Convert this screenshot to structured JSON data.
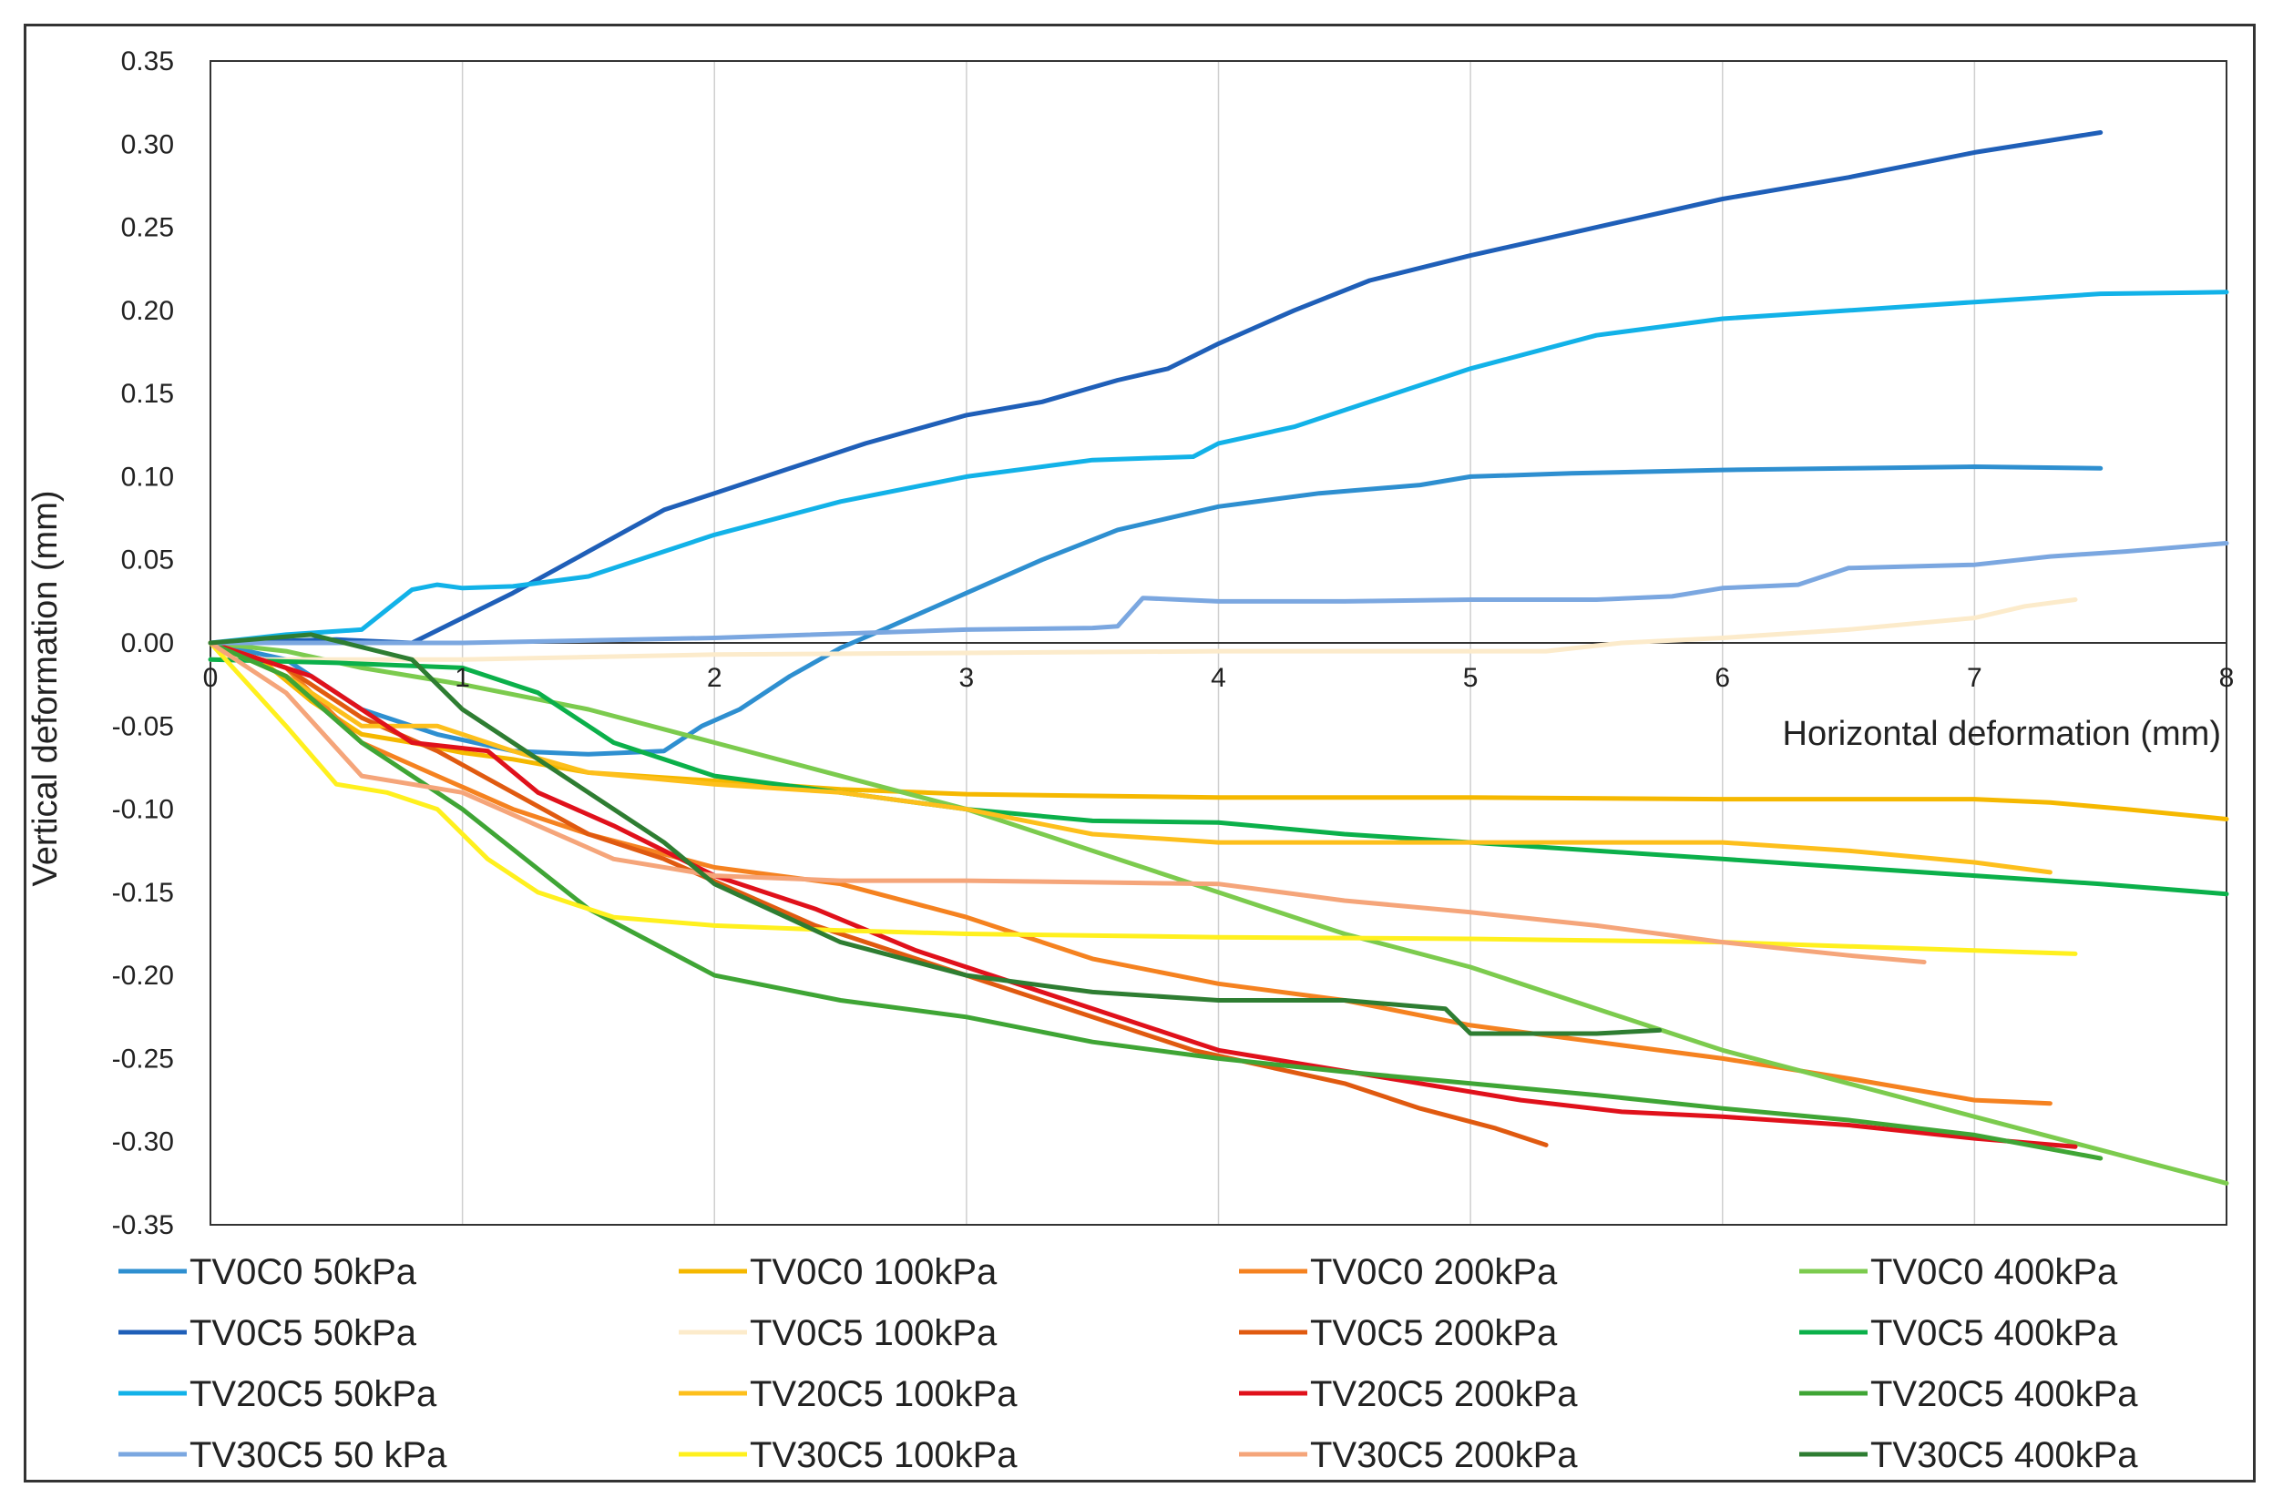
{
  "chart_data": {
    "type": "line",
    "title": "",
    "xlabel": "Horizontal deformation (mm)",
    "ylabel": "Vertical deformation (mm)",
    "xlim": [
      0,
      8
    ],
    "ylim": [
      -0.35,
      0.35
    ],
    "xticks": [
      "0",
      "1",
      "2",
      "3",
      "4",
      "5",
      "6",
      "7",
      "8"
    ],
    "yticks": [
      "0.35",
      "0.30",
      "0.25",
      "0.20",
      "0.15",
      "0.10",
      "0.05",
      "0.00",
      "-0.05",
      "-0.10",
      "-0.15",
      "-0.20",
      "-0.25",
      "-0.30",
      "-0.35"
    ],
    "grid": "vertical",
    "legend": "bottom",
    "series": [
      {
        "name": "TV0C0 50kPa",
        "color": "#2E8FD0",
        "x": [
          0,
          0.3,
          0.6,
          0.9,
          1.2,
          1.5,
          1.8,
          1.95,
          2.1,
          2.3,
          2.5,
          2.7,
          3.0,
          3.3,
          3.6,
          4.0,
          4.4,
          4.8,
          5.0,
          5.4,
          6.0,
          6.5,
          7.0,
          7.5
        ],
        "y": [
          0,
          -0.01,
          -0.04,
          -0.055,
          -0.065,
          -0.067,
          -0.065,
          -0.05,
          -0.04,
          -0.02,
          -0.003,
          0.01,
          0.03,
          0.05,
          0.068,
          0.082,
          0.09,
          0.095,
          0.1,
          0.102,
          0.104,
          0.105,
          0.106,
          0.105
        ]
      },
      {
        "name": "TV0C0 100kPa",
        "color": "#F5B800",
        "x": [
          0,
          0.2,
          0.4,
          0.6,
          0.8,
          1.0,
          1.2,
          1.5,
          2.0,
          2.5,
          3.0,
          4.0,
          5.0,
          6.0,
          7.0,
          7.3,
          7.6,
          8.0
        ],
        "y": [
          0,
          -0.01,
          -0.035,
          -0.055,
          -0.06,
          -0.066,
          -0.07,
          -0.078,
          -0.083,
          -0.088,
          -0.091,
          -0.093,
          -0.093,
          -0.094,
          -0.094,
          -0.096,
          -0.1,
          -0.106
        ]
      },
      {
        "name": "TV0C0 200kPa",
        "color": "#F58220",
        "x": [
          0,
          0.3,
          0.6,
          0.9,
          1.2,
          1.5,
          2.0,
          2.5,
          3.0,
          3.5,
          4.0,
          4.5,
          5.0,
          5.5,
          6.0,
          6.5,
          7.0,
          7.3
        ],
        "y": [
          0,
          -0.015,
          -0.06,
          -0.08,
          -0.1,
          -0.115,
          -0.135,
          -0.145,
          -0.165,
          -0.19,
          -0.205,
          -0.215,
          -0.23,
          -0.24,
          -0.25,
          -0.262,
          -0.275,
          -0.277
        ]
      },
      {
        "name": "TV0C0 400kPa",
        "color": "#7CCB4E",
        "x": [
          0,
          0.3,
          0.6,
          1.0,
          1.5,
          2.0,
          2.5,
          3.0,
          3.5,
          4.0,
          4.5,
          5.0,
          5.5,
          6.0,
          6.5,
          7.0,
          7.5,
          8.0
        ],
        "y": [
          0,
          -0.005,
          -0.015,
          -0.025,
          -0.04,
          -0.06,
          -0.08,
          -0.1,
          -0.125,
          -0.15,
          -0.175,
          -0.195,
          -0.22,
          -0.245,
          -0.265,
          -0.285,
          -0.305,
          -0.325
        ]
      },
      {
        "name": "TV0C5 50kPa",
        "color": "#1F5FB8",
        "x": [
          0,
          0.5,
          0.8,
          1.0,
          1.2,
          1.5,
          1.8,
          2.0,
          2.3,
          2.6,
          3.0,
          3.3,
          3.6,
          3.8,
          4.0,
          4.3,
          4.6,
          5.0,
          5.5,
          6.0,
          6.5,
          7.0,
          7.5
        ],
        "y": [
          0,
          0.002,
          0,
          0.015,
          0.03,
          0.055,
          0.08,
          0.09,
          0.105,
          0.12,
          0.137,
          0.145,
          0.158,
          0.165,
          0.18,
          0.2,
          0.218,
          0.233,
          0.25,
          0.267,
          0.28,
          0.295,
          0.307
        ]
      },
      {
        "name": "TV0C5 100kPa",
        "color": "#FCEBCB",
        "x": [
          0,
          1.0,
          2.0,
          3.0,
          4.0,
          5.0,
          5.3,
          5.6,
          6.0,
          6.5,
          7.0,
          7.2,
          7.4
        ],
        "y": [
          -0.01,
          -0.01,
          -0.007,
          -0.006,
          -0.005,
          -0.005,
          -0.005,
          0,
          0.003,
          0.008,
          0.015,
          0.022,
          0.026
        ]
      },
      {
        "name": "TV0C5 200kPa",
        "color": "#E05A10",
        "x": [
          0,
          0.3,
          0.6,
          0.9,
          1.2,
          1.5,
          1.8,
          2.1,
          2.4,
          2.7,
          3.0,
          3.3,
          3.6,
          3.9,
          4.2,
          4.5,
          4.8,
          5.1,
          5.3
        ],
        "y": [
          0,
          -0.015,
          -0.045,
          -0.065,
          -0.09,
          -0.115,
          -0.13,
          -0.15,
          -0.17,
          -0.185,
          -0.2,
          -0.215,
          -0.23,
          -0.245,
          -0.255,
          -0.265,
          -0.28,
          -0.292,
          -0.302
        ]
      },
      {
        "name": "TV0C5 400kPa",
        "color": "#0BB04A",
        "x": [
          0,
          0.5,
          1.0,
          1.3,
          1.6,
          2.0,
          2.5,
          3.0,
          3.5,
          4.0,
          4.5,
          5.0,
          5.5,
          6.0,
          6.5,
          7.0,
          7.5,
          8.0
        ],
        "y": [
          -0.01,
          -0.012,
          -0.015,
          -0.03,
          -0.06,
          -0.08,
          -0.09,
          -0.1,
          -0.107,
          -0.108,
          -0.115,
          -0.12,
          -0.125,
          -0.13,
          -0.135,
          -0.14,
          -0.145,
          -0.151
        ]
      },
      {
        "name": "TV20C5 50kPa",
        "color": "#12B2E8",
        "x": [
          0,
          0.3,
          0.6,
          0.7,
          0.8,
          0.9,
          1.0,
          1.2,
          1.5,
          1.8,
          2.0,
          2.5,
          3.0,
          3.5,
          3.9,
          4.0,
          4.3,
          4.6,
          5.0,
          5.5,
          6.0,
          6.5,
          7.0,
          7.5,
          8.0
        ],
        "y": [
          0,
          0.005,
          0.008,
          0.02,
          0.032,
          0.035,
          0.033,
          0.034,
          0.04,
          0.055,
          0.065,
          0.085,
          0.1,
          0.11,
          0.112,
          0.12,
          0.13,
          0.145,
          0.165,
          0.185,
          0.195,
          0.2,
          0.205,
          0.21,
          0.211
        ]
      },
      {
        "name": "TV20C5 100kPa",
        "color": "#FDBF1C",
        "x": [
          0,
          0.3,
          0.6,
          0.9,
          1.2,
          1.5,
          2.0,
          2.5,
          3.0,
          3.5,
          4.0,
          4.5,
          5.0,
          5.5,
          6.0,
          6.5,
          7.0,
          7.3
        ],
        "y": [
          0,
          -0.02,
          -0.05,
          -0.05,
          -0.065,
          -0.078,
          -0.085,
          -0.09,
          -0.1,
          -0.115,
          -0.12,
          -0.12,
          -0.12,
          -0.12,
          -0.12,
          -0.125,
          -0.132,
          -0.138
        ]
      },
      {
        "name": "TV20C5 200kPa",
        "color": "#E0111B",
        "x": [
          0,
          0.4,
          0.8,
          1.1,
          1.3,
          1.6,
          2.0,
          2.4,
          2.8,
          3.2,
          3.6,
          4.0,
          4.4,
          4.8,
          5.2,
          5.6,
          6.0,
          6.5,
          7.0,
          7.4
        ],
        "y": [
          0,
          -0.02,
          -0.06,
          -0.065,
          -0.09,
          -0.11,
          -0.14,
          -0.16,
          -0.185,
          -0.205,
          -0.225,
          -0.245,
          -0.255,
          -0.265,
          -0.275,
          -0.282,
          -0.285,
          -0.29,
          -0.298,
          -0.303
        ]
      },
      {
        "name": "TV20C5 400kPa",
        "color": "#3FA535",
        "x": [
          0,
          0.3,
          0.6,
          1.0,
          1.5,
          2.0,
          2.5,
          3.0,
          3.5,
          4.0,
          4.5,
          5.0,
          5.5,
          6.0,
          6.5,
          7.0,
          7.5
        ],
        "y": [
          0,
          -0.02,
          -0.06,
          -0.1,
          -0.16,
          -0.2,
          -0.215,
          -0.225,
          -0.24,
          -0.25,
          -0.258,
          -0.265,
          -0.272,
          -0.28,
          -0.287,
          -0.296,
          -0.31
        ]
      },
      {
        "name": "TV30C5 50 kPa",
        "color": "#7BA7E0",
        "x": [
          0,
          1.0,
          2.0,
          3.0,
          3.5,
          3.6,
          3.7,
          4.0,
          4.5,
          5.0,
          5.5,
          5.8,
          6.0,
          6.3,
          6.5,
          7.0,
          7.3,
          7.6,
          8.0
        ],
        "y": [
          0,
          0,
          0.003,
          0.008,
          0.009,
          0.01,
          0.027,
          0.025,
          0.025,
          0.026,
          0.026,
          0.028,
          0.033,
          0.035,
          0.045,
          0.047,
          0.052,
          0.055,
          0.06
        ]
      },
      {
        "name": "TV30C5 100kPa",
        "color": "#FFF01E",
        "x": [
          0,
          0.3,
          0.5,
          0.7,
          0.9,
          1.1,
          1.3,
          1.6,
          2.0,
          2.5,
          3.0,
          4.0,
          5.0,
          6.0,
          7.0,
          7.4
        ],
        "y": [
          0,
          -0.05,
          -0.085,
          -0.09,
          -0.1,
          -0.13,
          -0.15,
          -0.165,
          -0.17,
          -0.173,
          -0.175,
          -0.177,
          -0.178,
          -0.18,
          -0.185,
          -0.187
        ]
      },
      {
        "name": "TV30C5 200kPa",
        "color": "#F5A57A",
        "x": [
          0,
          0.3,
          0.6,
          1.0,
          1.3,
          1.6,
          2.0,
          2.5,
          3.0,
          3.5,
          4.0,
          4.5,
          5.0,
          5.5,
          6.0,
          6.5,
          6.8
        ],
        "y": [
          0,
          -0.03,
          -0.08,
          -0.09,
          -0.11,
          -0.13,
          -0.14,
          -0.143,
          -0.143,
          -0.144,
          -0.145,
          -0.155,
          -0.162,
          -0.17,
          -0.18,
          -0.188,
          -0.192
        ]
      },
      {
        "name": "TV30C5 400kPa",
        "color": "#2E7D32",
        "x": [
          0,
          0.4,
          0.8,
          1.0,
          1.2,
          1.5,
          1.8,
          2.0,
          2.5,
          3.0,
          3.5,
          4.0,
          4.5,
          4.9,
          5.0,
          5.5,
          5.75
        ],
        "y": [
          0,
          0.005,
          -0.01,
          -0.04,
          -0.06,
          -0.09,
          -0.12,
          -0.145,
          -0.18,
          -0.2,
          -0.21,
          -0.215,
          -0.215,
          -0.22,
          -0.235,
          -0.235,
          -0.233
        ]
      }
    ]
  }
}
